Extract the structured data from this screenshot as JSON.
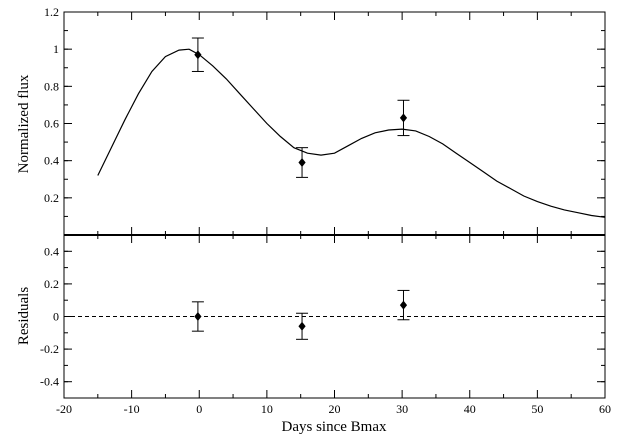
{
  "chart_data": [
    {
      "type": "line",
      "panel": "top",
      "ylabel": "Normalized flux",
      "xlim": [
        -20,
        60
      ],
      "ylim": [
        0,
        1.2
      ],
      "yticks": [
        0.2,
        0.4,
        0.6,
        0.8,
        1,
        1.2
      ],
      "ytick_labels": [
        "0.2",
        "0.4",
        "0.6",
        "0.8",
        "1",
        "1.2"
      ],
      "model_curve": {
        "x": [
          -15,
          -13,
          -11,
          -9,
          -7,
          -5,
          -3,
          -1.5,
          0,
          2,
          4,
          6,
          8,
          10,
          12,
          14,
          16,
          18,
          20,
          22,
          24,
          26,
          28,
          30,
          32,
          34,
          36,
          38,
          40,
          42,
          44,
          46,
          48,
          50,
          52,
          54,
          56,
          58,
          60
        ],
        "y": [
          0.32,
          0.47,
          0.62,
          0.76,
          0.88,
          0.96,
          0.995,
          1.0,
          0.97,
          0.91,
          0.84,
          0.76,
          0.68,
          0.6,
          0.53,
          0.47,
          0.44,
          0.43,
          0.44,
          0.48,
          0.52,
          0.55,
          0.565,
          0.57,
          0.56,
          0.53,
          0.49,
          0.44,
          0.39,
          0.34,
          0.29,
          0.25,
          0.21,
          0.18,
          0.155,
          0.135,
          0.12,
          0.105,
          0.095
        ]
      },
      "points": {
        "x": [
          -0.2,
          15.2,
          30.2
        ],
        "y": [
          0.97,
          0.39,
          0.63
        ],
        "err": [
          0.09,
          0.08,
          0.095
        ]
      }
    },
    {
      "type": "scatter",
      "panel": "bottom",
      "xlabel": "Days since Bmax",
      "ylabel": "Residuals",
      "xlim": [
        -20,
        60
      ],
      "ylim": [
        -0.5,
        0.5
      ],
      "xticks": [
        -20,
        -10,
        0,
        10,
        20,
        30,
        40,
        50,
        60
      ],
      "xtick_labels": [
        "-20",
        "-10",
        "0",
        "10",
        "20",
        "30",
        "40",
        "50",
        "60"
      ],
      "yticks": [
        -0.4,
        -0.2,
        0,
        0.2,
        0.4
      ],
      "ytick_labels": [
        "-0.4",
        "-0.2",
        "0",
        "0.2",
        "0.4"
      ],
      "reference_line": 0,
      "points": {
        "x": [
          -0.2,
          15.2,
          30.2
        ],
        "y": [
          0.0,
          -0.06,
          0.07
        ],
        "err": [
          0.09,
          0.08,
          0.09
        ]
      }
    }
  ]
}
